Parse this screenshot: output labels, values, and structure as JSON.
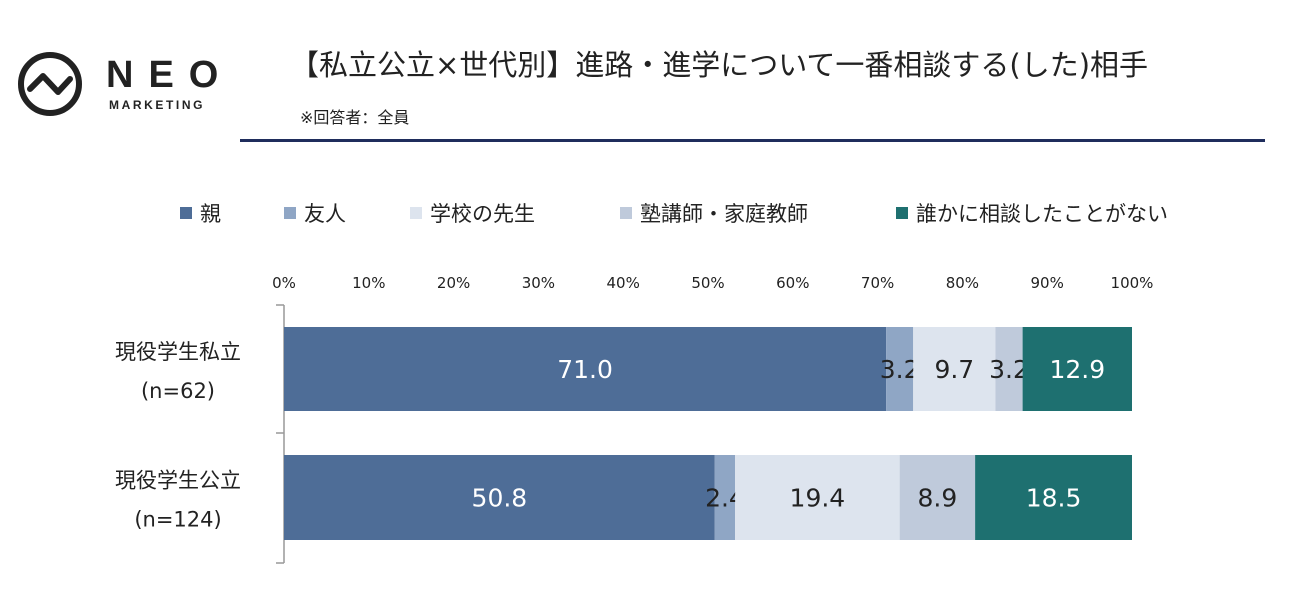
{
  "logo": {
    "brand": "NEO",
    "tagline": "MARKETING"
  },
  "title": "【私立公立×世代別】進路・進学について一番相談する(した)相手",
  "subtitle": "※回答者：全員",
  "colors": {
    "rule": "#1f2d5c",
    "parents": "#4e6d97",
    "friends": "#8fa6c5",
    "teacher": "#dde4ee",
    "tutor": "#bfcadb",
    "nobody": "#1e7070"
  },
  "chart_data": {
    "type": "bar",
    "orientation": "horizontal-stacked-100",
    "categories": [
      [
        "現役学生私立",
        "(n=62)"
      ],
      [
        "現役学生公立",
        "(n=124)"
      ]
    ],
    "series": [
      {
        "name": "親",
        "color": "#4e6d97",
        "label_color": "#ffffff",
        "values": [
          71.0,
          50.8
        ],
        "labels": [
          "71.0",
          "50.8"
        ]
      },
      {
        "name": "友人",
        "color": "#8fa6c5",
        "label_color": "#222222",
        "values": [
          3.2,
          2.4
        ],
        "labels": [
          "3.2",
          "2.4"
        ]
      },
      {
        "name": "学校の先生",
        "color": "#dde4ee",
        "label_color": "#222222",
        "values": [
          9.7,
          19.4
        ],
        "labels": [
          "9.7",
          "19.4"
        ]
      },
      {
        "name": "塾講師・家庭教師",
        "color": "#bfcadb",
        "label_color": "#222222",
        "values": [
          3.2,
          8.9
        ],
        "labels": [
          "3.2",
          "8.9"
        ]
      },
      {
        "name": "誰かに相談したことがない",
        "color": "#1e7070",
        "label_color": "#ffffff",
        "values": [
          12.9,
          18.5
        ],
        "labels": [
          "12.9",
          "18.5"
        ]
      }
    ],
    "xlim": [
      0,
      100
    ],
    "xticks": [
      "0%",
      "10%",
      "20%",
      "30%",
      "40%",
      "50%",
      "60%",
      "70%",
      "80%",
      "90%",
      "100%"
    ],
    "legend_position": "top",
    "grid": false
  }
}
